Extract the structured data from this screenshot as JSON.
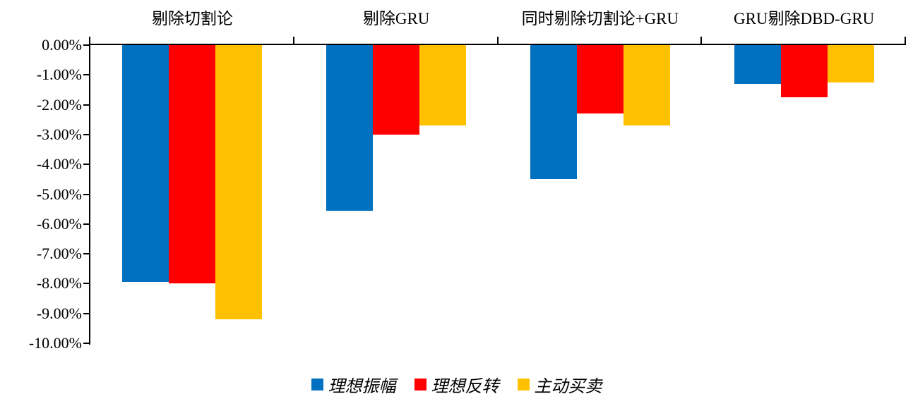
{
  "chart_data": {
    "type": "bar",
    "title": "",
    "categories": [
      "剔除切割论",
      "剔除GRU",
      "同时剔除切割论+GRU",
      "GRU剔除DBD-GRU"
    ],
    "series": [
      {
        "name": "理想振幅",
        "color": "#0070C0",
        "values": [
          -7.95,
          -5.55,
          -4.5,
          -1.3
        ]
      },
      {
        "name": "理想反转",
        "color": "#FF0000",
        "values": [
          -8.0,
          -3.0,
          -2.3,
          -1.75
        ]
      },
      {
        "name": "主动买卖",
        "color": "#FFC000",
        "values": [
          -9.2,
          -2.7,
          -2.7,
          -1.25
        ]
      }
    ],
    "y_axis": {
      "min": -10,
      "max": 0,
      "step": 1,
      "tick_labels": [
        "0.00%",
        "-1.00%",
        "-2.00%",
        "-3.00%",
        "-4.00%",
        "-5.00%",
        "-6.00%",
        "-7.00%",
        "-8.00%",
        "-9.00%",
        "-10.00%"
      ],
      "format": "percent"
    },
    "xlabel": "",
    "ylabel": "",
    "grid": false,
    "legend_position": "bottom",
    "bar_orientation": "vertical-from-zero-top"
  },
  "colors": {
    "axis": "#000000",
    "background": "#FFFFFF"
  }
}
